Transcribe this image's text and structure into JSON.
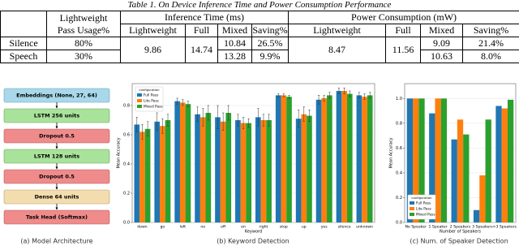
{
  "table": {
    "caption": "Table 1. On Device Inference Time and Power Consumption Performance",
    "usage_header": [
      "Lightweight",
      "Pass Usage%"
    ],
    "group_headers": [
      "Inference Time (ms)",
      "Power Consumption (mW)"
    ],
    "sub_headers": [
      "Lightweight",
      "Full",
      "Mixed",
      "Saving%",
      "Lightweight",
      "Full",
      "Mixed",
      "Saving%"
    ],
    "shared": {
      "inference_lightweight": "9.86",
      "inference_full": "14.74",
      "power_lightweight": "8.47",
      "power_full": "11.56"
    },
    "rows": [
      {
        "label": "Silence",
        "usage": "80%",
        "inference_mixed": "10.84",
        "inference_saving": "26.5%",
        "power_mixed": "9.09",
        "power_saving": "21.4%"
      },
      {
        "label": "Speech",
        "usage": "30%",
        "inference_mixed": "13.28",
        "inference_saving": "9.9%",
        "power_mixed": "10.63",
        "power_saving": "8.0%"
      }
    ]
  },
  "architecture": {
    "caption": "(a) Model Architecture",
    "layers": [
      "Embeddings (None, 27, 64)",
      "LSTM 256 units",
      "Dropout 0.5",
      "LSTM 128 units",
      "Dropout 0.5",
      "Dense 64 units",
      "Task Head (Softmax)"
    ]
  },
  "chart_data": [
    {
      "type": "bar",
      "caption": "(b) Keyword Detection",
      "x_label": "Keyword",
      "y_label": "Mean Accuracy",
      "legend_title": "configuration",
      "legend": "upper left",
      "grid": true,
      "categories": [
        "down",
        "go",
        "left",
        "no",
        "off",
        "on",
        "right",
        "stop",
        "up",
        "yes",
        "silence",
        "unknown"
      ],
      "ylim": [
        0,
        0.95
      ],
      "yticks": [
        {
          "value": 0,
          "label": "0.0"
        },
        0.2,
        0.4,
        0.6,
        0.8
      ],
      "series": [
        {
          "name": "Full Pass",
          "color": "#1f77b4",
          "values": [
            0.67,
            0.69,
            0.83,
            0.74,
            0.72,
            0.7,
            0.72,
            0.87,
            0.71,
            0.84,
            0.9,
            0.87
          ],
          "errors": [
            0.05,
            0.06,
            0.02,
            0.05,
            0.08,
            0.04,
            0.06,
            0.01,
            0.06,
            0.03,
            0.02,
            0.02
          ]
        },
        {
          "name": "Lite Pass",
          "color": "#ff7f0e",
          "values": [
            0.62,
            0.66,
            0.82,
            0.72,
            0.69,
            0.68,
            0.7,
            0.87,
            0.74,
            0.85,
            0.9,
            0.86
          ],
          "errors": [
            0.05,
            0.05,
            0.02,
            0.06,
            0.06,
            0.04,
            0.04,
            0.01,
            0.05,
            0.02,
            0.02,
            0.02
          ]
        },
        {
          "name": "Mixed Pass",
          "color": "#2ca02c",
          "values": [
            0.64,
            0.7,
            0.81,
            0.75,
            0.75,
            0.68,
            0.7,
            0.86,
            0.73,
            0.87,
            0.88,
            0.87
          ],
          "errors": [
            0.05,
            0.04,
            0.02,
            0.05,
            0.05,
            0.03,
            0.04,
            0.01,
            0.04,
            0.02,
            0.02,
            0.02
          ]
        }
      ]
    },
    {
      "type": "bar",
      "caption": "(c) Num. of Speaker Detection",
      "x_label": "Number of Speakers",
      "y_label": "Mean Accuracy",
      "legend_title": "configuration",
      "legend": "lower left",
      "grid": true,
      "categories": [
        "No Speaker",
        "1 Speaker",
        "2 Speakers",
        "3 Speakers",
        ">3 Speakers"
      ],
      "ylim": [
        0,
        1.12
      ],
      "yticks": [
        {
          "value": 0,
          "label": "0.0"
        },
        0.2,
        0.4,
        0.6,
        0.8,
        {
          "value": 1,
          "label": "1.0"
        }
      ],
      "series": [
        {
          "name": "Full Pass",
          "color": "#1f77b4",
          "values": [
            1.0,
            0.88,
            0.67,
            0.1,
            0.94
          ]
        },
        {
          "name": "Lite Pass",
          "color": "#ff7f0e",
          "values": [
            1.0,
            1.0,
            0.83,
            0.38,
            0.92
          ]
        },
        {
          "name": "Mixed Pass",
          "color": "#2ca02c",
          "values": [
            1.0,
            1.0,
            0.71,
            0.83,
            0.99
          ]
        }
      ]
    }
  ]
}
